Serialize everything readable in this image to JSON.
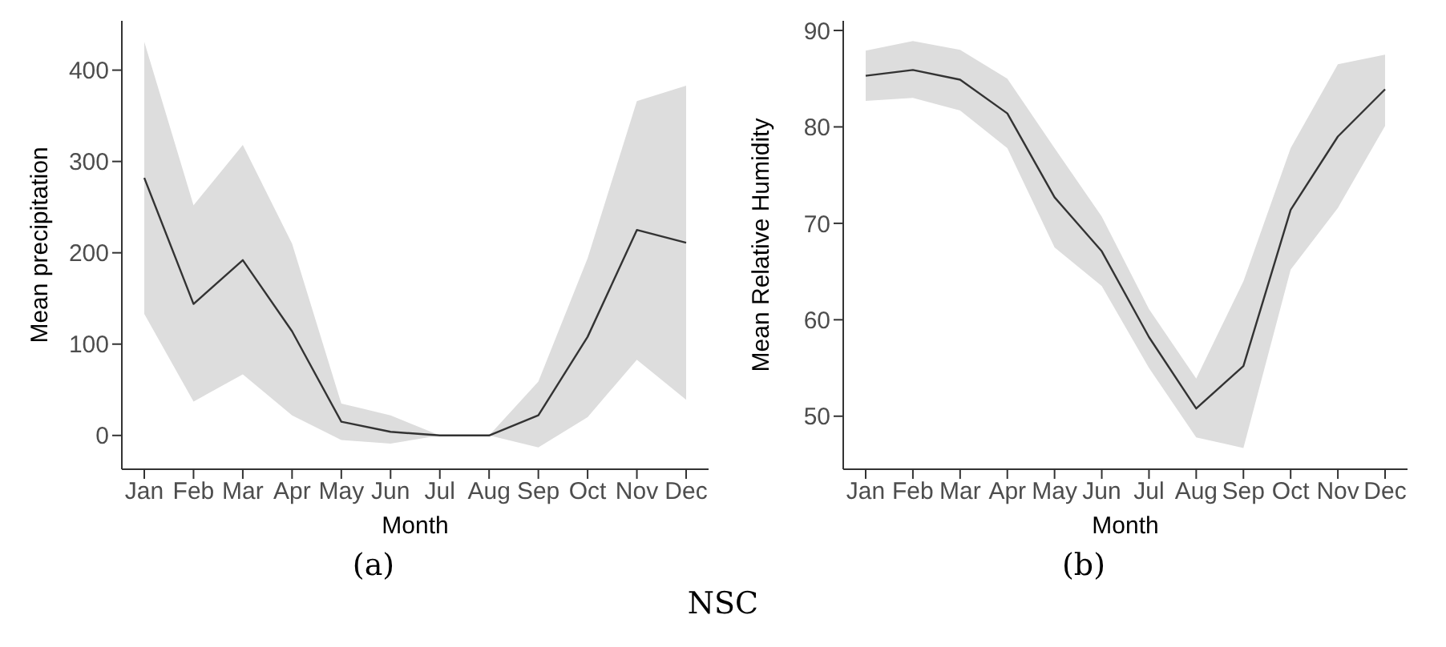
{
  "chart_data": [
    {
      "type": "line",
      "xlabel": "Month",
      "ylabel": "Mean precipitation",
      "categories": [
        "Jan",
        "Feb",
        "Mar",
        "Apr",
        "May",
        "Jun",
        "Jul",
        "Aug",
        "Sep",
        "Oct",
        "Nov",
        "Dec"
      ],
      "series": [
        {
          "color": "#333333",
          "values": [
            282,
            144,
            192,
            114,
            15,
            4,
            0,
            0,
            22,
            108,
            225,
            211
          ],
          "lower": [
            133,
            37,
            67,
            22,
            -5,
            -9,
            0,
            0,
            -13,
            20,
            83,
            39
          ],
          "upper": [
            431,
            252,
            318,
            210,
            35,
            22,
            0,
            0,
            59,
            194,
            366,
            383
          ]
        }
      ],
      "ylim": [
        -37,
        454
      ],
      "yticks": [
        0,
        100,
        200,
        300,
        400
      ],
      "grid": false,
      "legend": false,
      "marker": "none",
      "line_style": "solid",
      "annotations": [
        "(a)",
        "NSC"
      ]
    },
    {
      "type": "line",
      "xlabel": "Month",
      "ylabel": "Mean Relative Humidity",
      "categories": [
        "Jan",
        "Feb",
        "Mar",
        "Apr",
        "May",
        "Jun",
        "Jul",
        "Aug",
        "Sep",
        "Oct",
        "Nov",
        "Dec"
      ],
      "series": [
        {
          "color": "#333333",
          "values": [
            85.3,
            85.9,
            84.9,
            81.4,
            72.7,
            67.1,
            58.2,
            50.8,
            55.2,
            71.4,
            79.0,
            83.9
          ],
          "lower": [
            82.7,
            83.0,
            81.7,
            77.8,
            67.5,
            63.5,
            55.0,
            47.8,
            46.7,
            65.2,
            71.6,
            80.1
          ],
          "upper": [
            87.9,
            88.9,
            88.0,
            85.0,
            77.8,
            70.7,
            61.1,
            53.9,
            64.0,
            77.8,
            86.5,
            87.5
          ]
        }
      ],
      "ylim": [
        44.5,
        91
      ],
      "yticks": [
        50,
        60,
        70,
        80,
        90
      ],
      "grid": false,
      "legend": false,
      "marker": "none",
      "line_style": "solid",
      "annotations": [
        "(b)"
      ]
    }
  ]
}
